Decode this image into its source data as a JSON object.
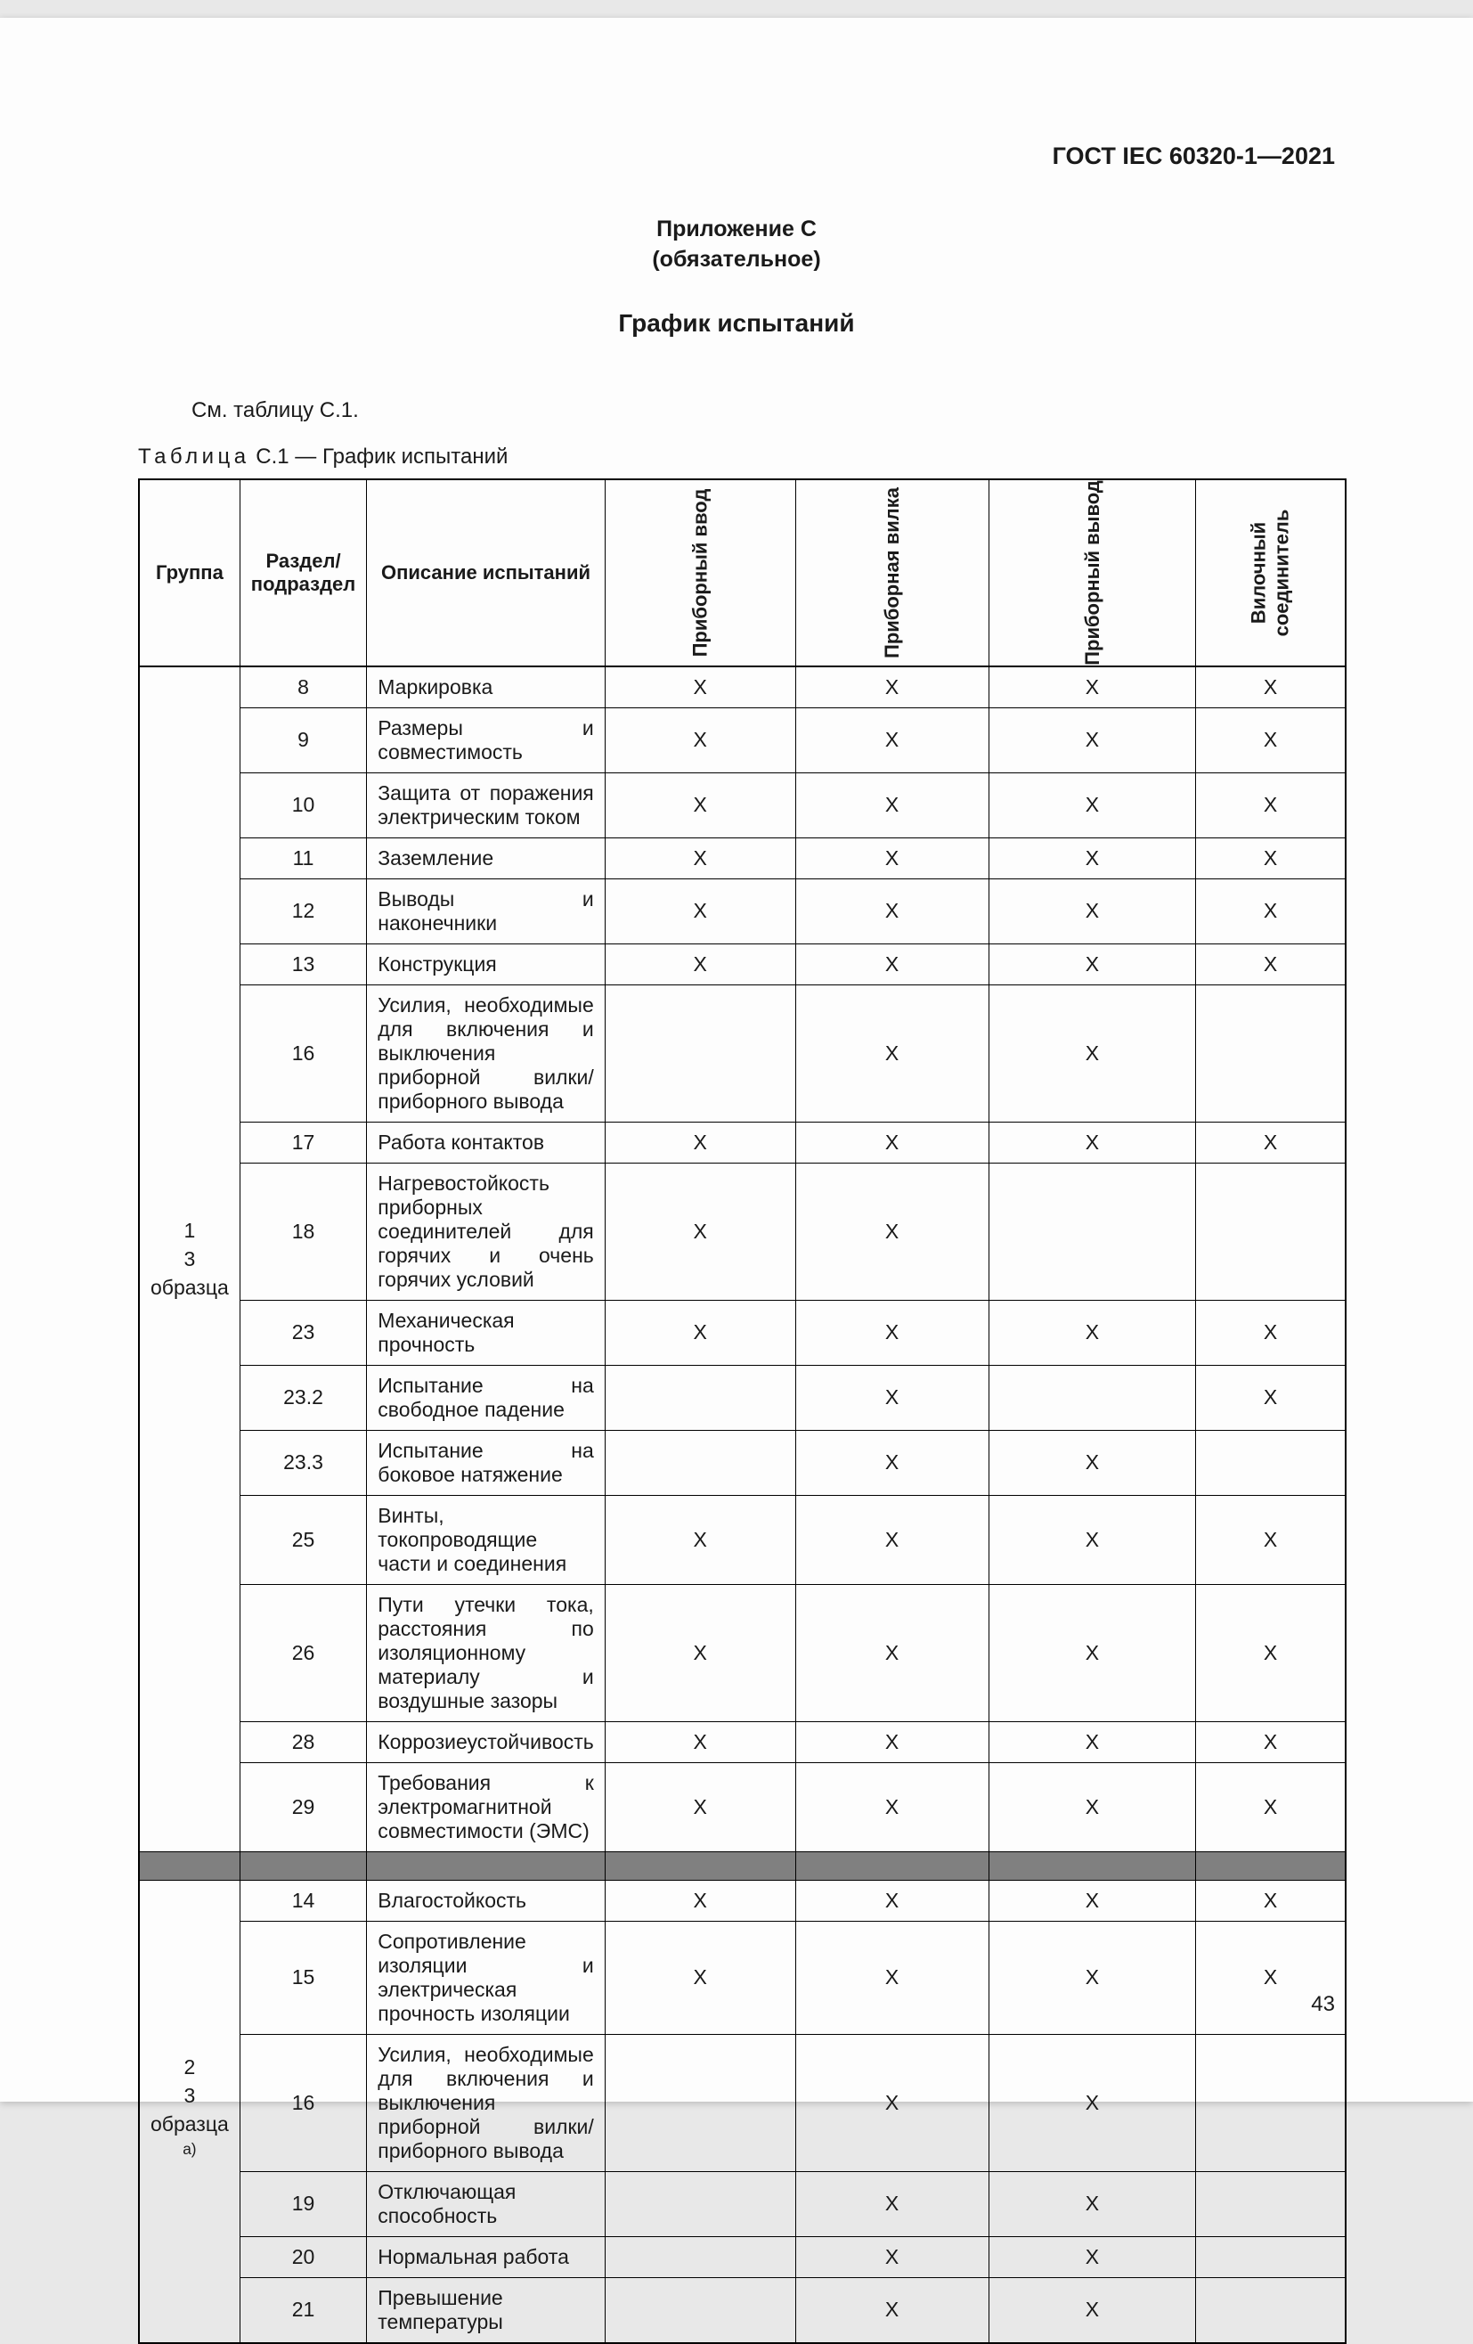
{
  "doc_header": "ГОСТ IEC 60320-1—2021",
  "annex_label": "Приложение С",
  "annex_mandatory": "(обязательное)",
  "main_title": "График испытаний",
  "reference_text": "См. таблицу С.1.",
  "table_caption_prefix": "Таблица",
  "table_caption_rest": "  С.1 — График испытаний",
  "headers": {
    "group": "Группа",
    "section": "Раздел/\nподраздел",
    "description": "Описание испытаний",
    "col1": "Приборный ввод",
    "col2": "Приборная вилка",
    "col3": "Приборный вывод",
    "col4": "Вилочный\nсоединитель"
  },
  "groups": [
    {
      "group_label": "1\n3 образца",
      "rows": [
        {
          "section": "8",
          "desc": "Маркировка",
          "marks": [
            "X",
            "X",
            "X",
            "X"
          ]
        },
        {
          "section": "9",
          "desc": "Размеры и совместимость",
          "marks": [
            "X",
            "X",
            "X",
            "X"
          ]
        },
        {
          "section": "10",
          "desc": "Защита от поражения электрическим током",
          "marks": [
            "X",
            "X",
            "X",
            "X"
          ]
        },
        {
          "section": "11",
          "desc": "Заземление",
          "marks": [
            "X",
            "X",
            "X",
            "X"
          ]
        },
        {
          "section": "12",
          "desc": "Выводы и наконечники",
          "marks": [
            "X",
            "X",
            "X",
            "X"
          ]
        },
        {
          "section": "13",
          "desc": "Конструкция",
          "marks": [
            "X",
            "X",
            "X",
            "X"
          ]
        },
        {
          "section": "16",
          "desc": "Усилия, необходимые для включения и выключения приборной вилки/приборного вывода",
          "marks": [
            "",
            "X",
            "X",
            ""
          ]
        },
        {
          "section": "17",
          "desc": "Работа контактов",
          "marks": [
            "X",
            "X",
            "X",
            "X"
          ]
        },
        {
          "section": "18",
          "desc": "Нагревостойкость приборных соединителей для горячих и очень горячих условий",
          "marks": [
            "X",
            "X",
            "",
            ""
          ]
        },
        {
          "section": "23",
          "desc": "Механическая прочность",
          "marks": [
            "X",
            "X",
            "X",
            "X"
          ]
        },
        {
          "section": "23.2",
          "desc": "Испытание на свободное падение",
          "marks": [
            "",
            "X",
            "",
            "X"
          ]
        },
        {
          "section": "23.3",
          "desc": "Испытание на боковое натяжение",
          "marks": [
            "",
            "X",
            "X",
            ""
          ]
        },
        {
          "section": "25",
          "desc": "Винты, токопроводящие части и соединения",
          "marks": [
            "X",
            "X",
            "X",
            "X"
          ]
        },
        {
          "section": "26",
          "desc": "Пути утечки тока, расстояния по изоляционному материалу и воздушные зазоры",
          "marks": [
            "X",
            "X",
            "X",
            "X"
          ]
        },
        {
          "section": "28",
          "desc": "Коррозиеустойчивость",
          "marks": [
            "X",
            "X",
            "X",
            "X"
          ]
        },
        {
          "section": "29",
          "desc": "Требования к электромагнитной совместимости (ЭМС)",
          "marks": [
            "X",
            "X",
            "X",
            "X"
          ]
        }
      ]
    },
    {
      "group_label": "2\n3 образца",
      "group_note": "a)",
      "rows": [
        {
          "section": "14",
          "desc": "Влагостойкость",
          "marks": [
            "X",
            "X",
            "X",
            "X"
          ]
        },
        {
          "section": "15",
          "desc": "Сопротивление изоляции и электрическая прочность изоляции",
          "marks": [
            "X",
            "X",
            "X",
            "X"
          ]
        },
        {
          "section": "16",
          "desc": "Усилия, необходимые для включения и выключения приборной вилки/приборного вывода",
          "marks": [
            "",
            "X",
            "X",
            ""
          ]
        },
        {
          "section": "19",
          "desc": "Отключающая способность",
          "marks": [
            "",
            "X",
            "X",
            ""
          ]
        },
        {
          "section": "20",
          "desc": "Нормальная работа",
          "marks": [
            "",
            "X",
            "X",
            ""
          ]
        },
        {
          "section": "21",
          "desc": "Превышение температуры",
          "marks": [
            "",
            "X",
            "X",
            ""
          ]
        }
      ]
    }
  ],
  "page_number": "43"
}
